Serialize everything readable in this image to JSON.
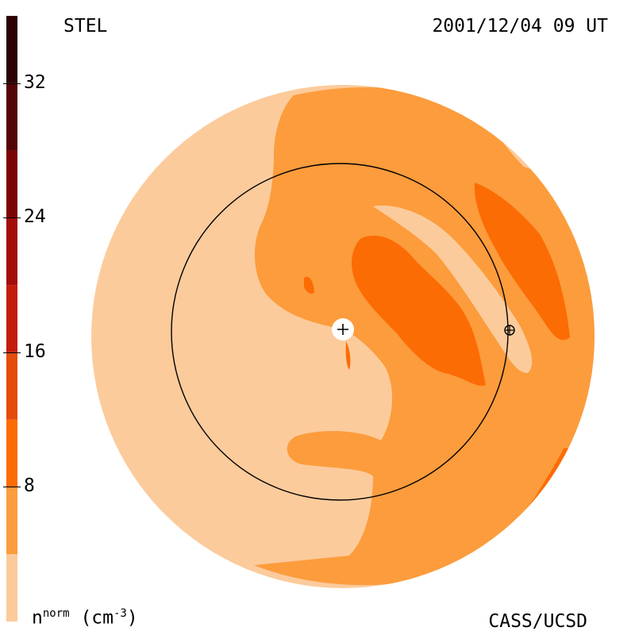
{
  "header": {
    "station": "STEL",
    "datetime": "2001/12/04 09 UT"
  },
  "footer": {
    "credit": "CASS/UCSD"
  },
  "units": {
    "base": "n",
    "sup": "norm",
    "unit_pre": "(cm",
    "unit_sup": "-3",
    "unit_post": ")"
  },
  "chart_data": {
    "type": "heatmap",
    "title": "",
    "colorbar": {
      "range": [
        0,
        36
      ],
      "ticks": [
        8,
        16,
        24,
        32
      ],
      "levels": [
        {
          "from": 0,
          "to": 4,
          "color": "#fccb9c"
        },
        {
          "from": 4,
          "to": 8,
          "color": "#fc9c3c"
        },
        {
          "from": 8,
          "to": 12,
          "color": "#fc6c04"
        },
        {
          "from": 12,
          "to": 16,
          "color": "#e44c0c"
        },
        {
          "from": 16,
          "to": 20,
          "color": "#c41c0c"
        },
        {
          "from": 20,
          "to": 24,
          "color": "#a40c0c"
        },
        {
          "from": 24,
          "to": 28,
          "color": "#7c0404"
        },
        {
          "from": 28,
          "to": 32,
          "color": "#540404"
        },
        {
          "from": 32,
          "to": 36,
          "color": "#2c0000"
        }
      ]
    },
    "markers": [
      {
        "name": "sun",
        "symbol": "+"
      },
      {
        "name": "earth",
        "symbol": "⊕"
      }
    ],
    "reference_circle": "1 AU"
  }
}
